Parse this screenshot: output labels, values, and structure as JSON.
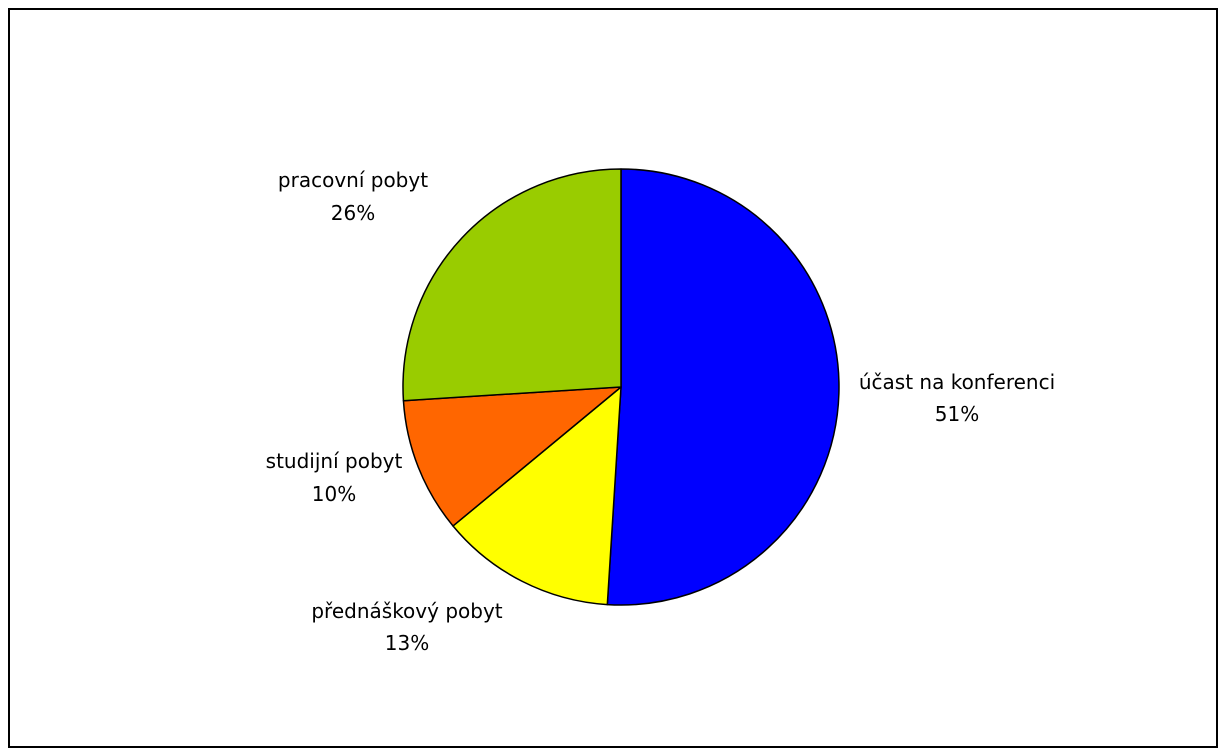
{
  "chart_data": {
    "type": "pie",
    "title": "",
    "legend": "none",
    "start_angle_deg": 0,
    "direction": "clockwise",
    "slices": [
      {
        "label": "účast na konferenci",
        "value": 51,
        "value_label": "51%",
        "color": "#0000FF"
      },
      {
        "label": "přednáškový pobyt",
        "value": 13,
        "value_label": "13%",
        "color": "#FFFF00"
      },
      {
        "label": "studijní pobyt",
        "value": 10,
        "value_label": "10%",
        "color": "#FF6600"
      },
      {
        "label": "pracovní pobyt",
        "value": 26,
        "value_label": "26%",
        "color": "#99CC00"
      }
    ]
  }
}
